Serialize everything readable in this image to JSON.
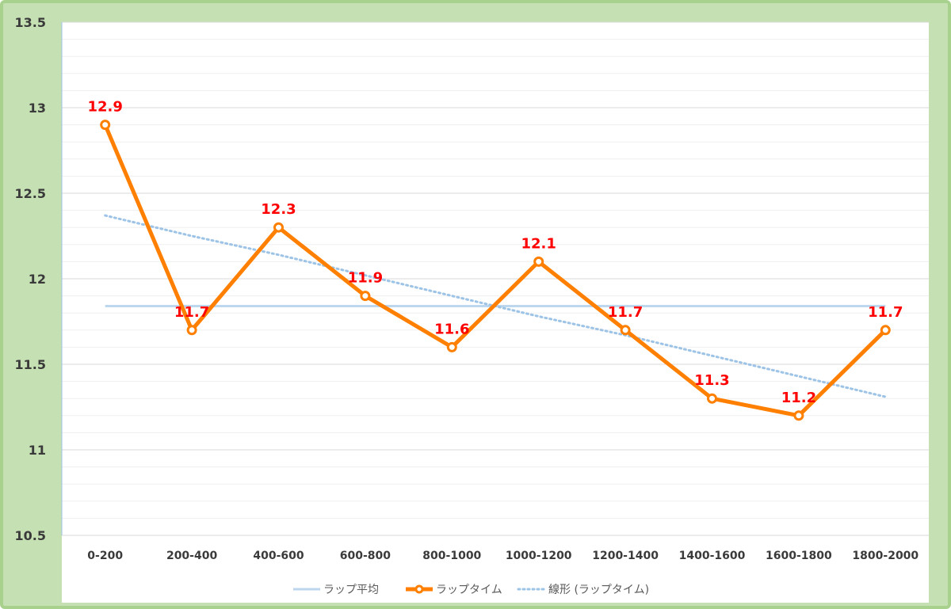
{
  "chart_data": {
    "type": "line",
    "title": "",
    "xlabel": "",
    "ylabel": "",
    "categories": [
      "0-200",
      "200-400",
      "400-600",
      "600-800",
      "800-1000",
      "1000-1200",
      "1200-1400",
      "1400-1600",
      "1600-1800",
      "1800-2000"
    ],
    "ylim": [
      10.5,
      13.5
    ],
    "y_ticks": [
      "10.5",
      "11",
      "11.5",
      "12",
      "12.5",
      "13",
      "13.5"
    ],
    "minor_gridlines_step": 0.1,
    "grid": true,
    "legend_position": "bottom",
    "series": [
      {
        "name": "ラップ平均",
        "kind": "average",
        "color": "#bdd7ee",
        "values": [
          11.84,
          11.84,
          11.84,
          11.84,
          11.84,
          11.84,
          11.84,
          11.84,
          11.84,
          11.84
        ]
      },
      {
        "name": "ラップタイム",
        "kind": "main",
        "color": "#ff7f00",
        "values": [
          12.9,
          11.7,
          12.3,
          11.9,
          11.6,
          12.1,
          11.7,
          11.3,
          11.2,
          11.7
        ],
        "data_labels": [
          "12.9",
          "11.7",
          "12.3",
          "11.9",
          "11.6",
          "12.1",
          "11.7",
          "11.3",
          "11.2",
          "11.7"
        ]
      },
      {
        "name": "線形 (ラップタイム)",
        "kind": "trendline",
        "color": "#9dc3e6",
        "values": [
          12.37,
          12.25,
          12.14,
          12.02,
          11.9,
          11.78,
          11.67,
          11.55,
          11.43,
          11.31
        ]
      }
    ]
  }
}
